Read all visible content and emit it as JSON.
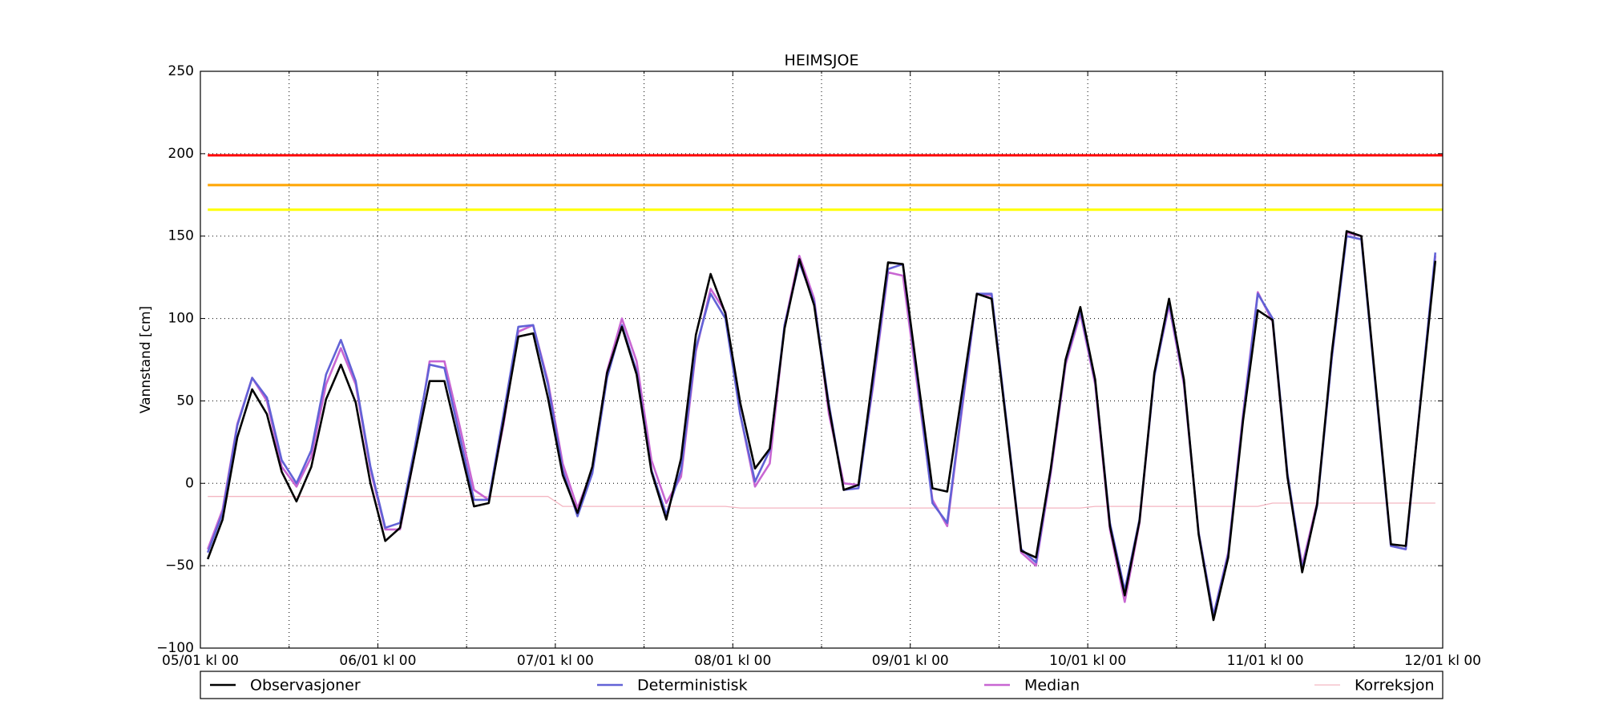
{
  "chart_data": {
    "type": "line",
    "title": "HEIMSJOE",
    "ylabel": "Vannstand [cm]",
    "x": [
      1,
      3,
      5,
      7,
      9,
      11,
      13,
      15,
      17,
      19,
      21,
      23,
      25,
      27,
      29,
      31,
      33,
      35,
      37,
      39,
      41,
      43,
      45,
      47,
      49,
      51,
      53,
      55,
      57,
      59,
      61,
      63,
      65,
      67,
      69,
      71,
      73,
      75,
      77,
      79,
      81,
      83,
      85,
      87,
      89,
      91,
      93,
      95,
      97,
      99,
      101,
      103,
      105,
      107,
      109,
      111,
      113,
      115,
      117,
      119,
      121,
      123,
      125,
      127,
      129,
      131,
      133,
      135,
      137,
      139,
      141,
      143,
      145,
      147,
      149,
      151,
      153,
      155,
      157,
      159,
      161,
      163,
      165,
      167
    ],
    "series": [
      {
        "name": "Observasjoner",
        "color": "#000000",
        "width": 2,
        "values": [
          -46,
          -22,
          28,
          57,
          42,
          7,
          -11,
          10,
          51,
          72,
          49,
          0,
          -35,
          -27,
          18,
          62,
          62,
          24,
          -14,
          -12,
          38,
          89,
          91,
          52,
          5,
          -18,
          10,
          67,
          95,
          66,
          7,
          -22,
          15,
          90,
          127,
          103,
          49,
          9,
          21,
          94,
          136,
          108,
          46,
          -4,
          -1,
          67,
          134,
          133,
          65,
          -3,
          -5,
          55,
          115,
          112,
          36,
          -41,
          -45,
          9,
          75,
          107,
          63,
          -26,
          -68,
          -23,
          67,
          112,
          63,
          -31,
          -83,
          -45,
          38,
          105,
          99,
          4,
          -54,
          -13,
          79,
          153,
          150,
          57,
          -37,
          -38,
          49,
          135
        ]
      },
      {
        "name": "Deterministisk",
        "color": "#6262d6",
        "width": 2,
        "values": [
          -42,
          -18,
          35,
          64,
          52,
          14,
          0,
          20,
          66,
          87,
          62,
          10,
          -27,
          -24,
          22,
          72,
          70,
          30,
          -10,
          -10,
          42,
          95,
          96,
          60,
          8,
          -20,
          6,
          64,
          96,
          68,
          8,
          -19,
          8,
          82,
          115,
          100,
          42,
          1,
          20,
          96,
          134,
          110,
          48,
          -4,
          -3,
          62,
          130,
          133,
          62,
          -12,
          -24,
          47,
          115,
          115,
          38,
          -40,
          -48,
          8,
          74,
          105,
          62,
          -24,
          -65,
          -22,
          65,
          110,
          62,
          -30,
          -80,
          -43,
          40,
          115,
          100,
          6,
          -52,
          -14,
          76,
          150,
          148,
          55,
          -38,
          -40,
          50,
          140
        ]
      },
      {
        "name": "Median",
        "color": "#c866d2",
        "width": 2,
        "values": [
          -40,
          -16,
          36,
          64,
          50,
          10,
          -2,
          16,
          60,
          82,
          60,
          8,
          -28,
          -28,
          18,
          74,
          74,
          36,
          -4,
          -10,
          36,
          92,
          96,
          62,
          12,
          -15,
          8,
          68,
          100,
          74,
          14,
          -12,
          4,
          80,
          118,
          104,
          42,
          -2,
          12,
          96,
          138,
          112,
          42,
          0,
          -1,
          60,
          128,
          126,
          58,
          -10,
          -26,
          45,
          115,
          114,
          36,
          -42,
          -50,
          6,
          72,
          103,
          60,
          -28,
          -72,
          -24,
          66,
          108,
          60,
          -30,
          -80,
          -42,
          42,
          116,
          98,
          4,
          -50,
          -12,
          76,
          152,
          150,
          56,
          -38,
          -40,
          50,
          138
        ]
      },
      {
        "name": "Korreksjon",
        "color": "#f4b6c2",
        "width": 1,
        "values": [
          -8,
          -8,
          -8,
          -8,
          -8,
          -8,
          -8,
          -8,
          -8,
          -8,
          -8,
          -8,
          -8,
          -8,
          -8,
          -8,
          -8,
          -8,
          -8,
          -8,
          -8,
          -8,
          -8,
          -8,
          -14,
          -14,
          -14,
          -14,
          -14,
          -14,
          -14,
          -14,
          -14,
          -14,
          -14,
          -14,
          -15,
          -15,
          -15,
          -15,
          -15,
          -15,
          -15,
          -15,
          -15,
          -15,
          -15,
          -15,
          -15,
          -15,
          -15,
          -15,
          -15,
          -15,
          -15,
          -15,
          -15,
          -15,
          -15,
          -15,
          -14,
          -14,
          -14,
          -14,
          -14,
          -14,
          -14,
          -14,
          -14,
          -14,
          -14,
          -14,
          -12,
          -12,
          -12,
          -12,
          -12,
          -12,
          -12,
          -12,
          -12,
          -12,
          -12,
          -12
        ]
      }
    ],
    "reference_lines": [
      {
        "value": 199,
        "color": "#ff0000"
      },
      {
        "value": 181,
        "color": "#ffa500"
      },
      {
        "value": 166,
        "color": "#ffff00"
      }
    ],
    "xlim": [
      0,
      168
    ],
    "xticks": [
      {
        "value": 0,
        "label": "05/01 kl 00"
      },
      {
        "value": 24,
        "label": "06/01 kl 00"
      },
      {
        "value": 48,
        "label": "07/01 kl 00"
      },
      {
        "value": 72,
        "label": "08/01 kl 00"
      },
      {
        "value": 96,
        "label": "09/01 kl 00"
      },
      {
        "value": 120,
        "label": "10/01 kl 00"
      },
      {
        "value": 144,
        "label": "11/01 kl 00"
      },
      {
        "value": 168,
        "label": "12/01 kl 00"
      }
    ],
    "xminor_ticks": [
      12,
      36,
      60,
      84,
      108,
      132,
      156
    ],
    "ylim": [
      -100,
      250
    ],
    "yticks": [
      {
        "value": -100,
        "label": "−100"
      },
      {
        "value": -50,
        "label": "−50"
      },
      0,
      50,
      100,
      150,
      200,
      250
    ],
    "grid": true,
    "legend": "bottom"
  }
}
